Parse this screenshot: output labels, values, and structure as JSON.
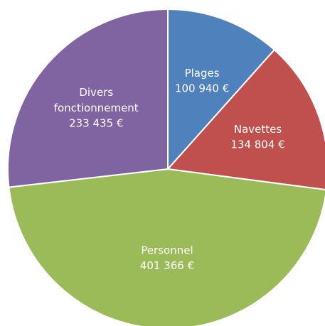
{
  "chart_data": {
    "type": "pie",
    "categories": [
      "Plages",
      "Navettes",
      "Personnel",
      "Divers fonctionnement"
    ],
    "values": [
      100940,
      134804,
      401366,
      233435
    ],
    "value_labels": [
      "100 940 €",
      "134 804 €",
      "401 366 €",
      "233 435 €"
    ],
    "colors": [
      "#4f81bd",
      "#c0504d",
      "#9bbb59",
      "#8064a2"
    ]
  }
}
